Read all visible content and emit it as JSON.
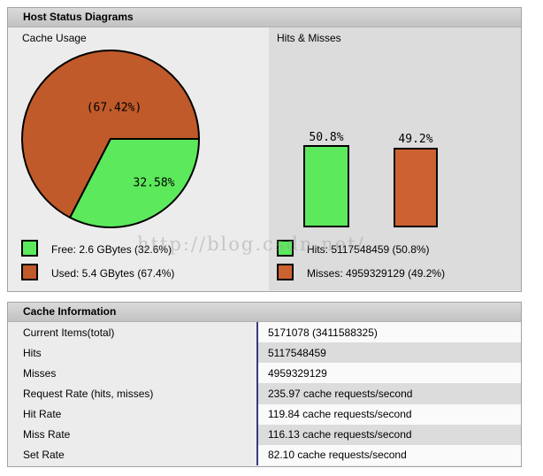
{
  "host_status": {
    "title": "Host Status Diagrams",
    "cache_usage": {
      "title": "Cache Usage",
      "legend": [
        {
          "label": "Free: 2.6 GBytes (32.6%)",
          "color": "#5ce95c"
        },
        {
          "label": "Used: 5.4 GBytes (67.4%)",
          "color": "#c05a2a"
        }
      ]
    },
    "hits_misses": {
      "title": "Hits & Misses",
      "legend": [
        {
          "label": "Hits: 5117548459 (50.8%)",
          "color": "#5ce95c"
        },
        {
          "label": "Misses: 4959329129 (49.2%)",
          "color": "#cc6230"
        }
      ]
    }
  },
  "chart_data": [
    {
      "type": "pie",
      "title": "Cache Usage",
      "slices": [
        {
          "label": "Free",
          "value_text": "2.6 GBytes",
          "percent": 32.58,
          "display": "32.58%",
          "color": "#5ce95c"
        },
        {
          "label": "Used",
          "value_text": "5.4 GBytes",
          "percent": 67.42,
          "display": "(67.42%)",
          "color": "#c05a2a"
        }
      ],
      "legend_position": "bottom-left"
    },
    {
      "type": "bar",
      "title": "Hits & Misses",
      "categories": [
        "Hits",
        "Misses"
      ],
      "values": [
        5117548459,
        4959329129
      ],
      "percents": [
        50.8,
        49.2
      ],
      "labels": [
        "50.8%",
        "49.2%"
      ],
      "colors": [
        "#5ce95c",
        "#cc6230"
      ],
      "legend_position": "bottom-left"
    }
  ],
  "cache_information": {
    "title": "Cache Information",
    "rows": [
      {
        "label": "Current Items(total)",
        "value": "5171078 (3411588325)"
      },
      {
        "label": "Hits",
        "value": "5117548459"
      },
      {
        "label": "Misses",
        "value": "4959329129"
      },
      {
        "label": "Request Rate (hits, misses)",
        "value": "235.97 cache requests/second"
      },
      {
        "label": "Hit Rate",
        "value": "119.84 cache requests/second"
      },
      {
        "label": "Miss Rate",
        "value": "116.13 cache requests/second"
      },
      {
        "label": "Set Rate",
        "value": "82.10 cache requests/second"
      }
    ]
  },
  "watermark": "http://blog.csdn.net/"
}
